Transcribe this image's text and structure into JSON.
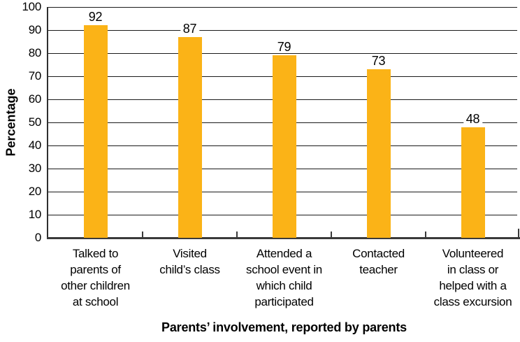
{
  "chart_data": {
    "type": "bar",
    "title": "",
    "xlabel": "Parents’ involvement, reported by parents",
    "ylabel": "Percentage",
    "ylim": [
      0,
      100
    ],
    "ytick_step": 10,
    "grid": "on",
    "legend": "none",
    "categories": [
      "Talked to parents of other children at school",
      "Visited child’s class",
      "Attended a school event in which child participated",
      "Contacted teacher",
      "Volunteered in class or helped with a class excursion"
    ],
    "category_lines": [
      [
        "Talked to",
        "parents of",
        "other children",
        "at school"
      ],
      [
        "Visited",
        "child’s class"
      ],
      [
        "Attended a",
        "school event in",
        "which child",
        "participated"
      ],
      [
        "Contacted",
        "teacher"
      ],
      [
        "Volunteered",
        "in class or",
        "helped with a",
        "class excursion"
      ]
    ],
    "values": [
      92,
      87,
      79,
      73,
      48
    ],
    "value_labels": [
      "92",
      "87",
      "79",
      "73",
      "48"
    ],
    "bar_color": "#FBB317"
  },
  "colors": {
    "background": "#FFFFFF",
    "gridline": "#1B1B1B",
    "axis": "#3A3A3A",
    "text": "#000000"
  }
}
